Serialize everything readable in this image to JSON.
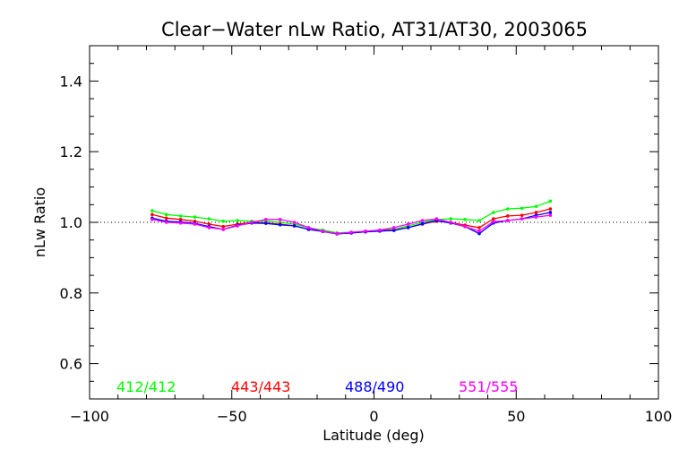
{
  "chart_data": {
    "type": "line",
    "title": "Clear−Water nLw Ratio, AT31/AT30, 2003065",
    "xlabel": "Latitude (deg)",
    "ylabel": "nLw Ratio",
    "xlim": [
      -100,
      100
    ],
    "ylim": [
      0.5,
      1.5
    ],
    "xticks": [
      -100,
      -50,
      0,
      50,
      100
    ],
    "xtick_labels": [
      "−100",
      "−50",
      "0",
      "50",
      "100"
    ],
    "yticks": [
      0.6,
      0.8,
      1.0,
      1.2,
      1.4
    ],
    "ytick_labels": [
      "0.6",
      "0.8",
      "1.0",
      "1.2",
      "1.4"
    ],
    "reference_line": 1.0,
    "grid": false,
    "legend_placement": "bottom, inside plot",
    "x": [
      -78,
      -73,
      -68,
      -63,
      -58,
      -53,
      -48,
      -43,
      -38,
      -33,
      -28,
      -23,
      -18,
      -13,
      -8,
      -3,
      2,
      7,
      12,
      17,
      22,
      27,
      32,
      37,
      42,
      47,
      52,
      57,
      62
    ],
    "series": [
      {
        "name": "412/412",
        "color": "#00ff00",
        "values": [
          1.033,
          1.022,
          1.018,
          1.015,
          1.01,
          1.003,
          1.005,
          1.003,
          1.003,
          1.0,
          0.995,
          0.985,
          0.978,
          0.97,
          0.972,
          0.975,
          0.978,
          0.98,
          0.99,
          1.0,
          1.008,
          1.01,
          1.008,
          1.005,
          1.028,
          1.038,
          1.04,
          1.045,
          1.06
        ]
      },
      {
        "name": "443/443",
        "color": "#ff0000",
        "values": [
          1.022,
          1.012,
          1.008,
          1.003,
          0.995,
          0.988,
          0.995,
          1.0,
          0.998,
          0.995,
          0.99,
          0.98,
          0.975,
          0.968,
          0.97,
          0.973,
          0.976,
          0.978,
          0.985,
          0.995,
          1.003,
          1.0,
          0.992,
          0.985,
          1.01,
          1.018,
          1.02,
          1.028,
          1.038
        ]
      },
      {
        "name": "488/490",
        "color": "#0000ff",
        "values": [
          1.012,
          1.003,
          1.001,
          0.997,
          0.988,
          0.98,
          0.992,
          0.998,
          0.997,
          0.993,
          0.99,
          0.98,
          0.974,
          0.967,
          0.97,
          0.973,
          0.975,
          0.977,
          0.985,
          0.996,
          1.005,
          0.998,
          0.988,
          0.968,
          0.998,
          1.005,
          1.01,
          1.02,
          1.028
        ]
      },
      {
        "name": "551/555",
        "color": "#ff00ff",
        "values": [
          1.008,
          1.0,
          0.998,
          0.995,
          0.985,
          0.98,
          0.99,
          1.0,
          1.008,
          1.008,
          1.0,
          0.985,
          0.975,
          0.968,
          0.972,
          0.975,
          0.978,
          0.985,
          0.995,
          1.005,
          1.01,
          1.0,
          0.988,
          0.975,
          1.002,
          1.005,
          1.01,
          1.015,
          1.02
        ]
      }
    ]
  }
}
